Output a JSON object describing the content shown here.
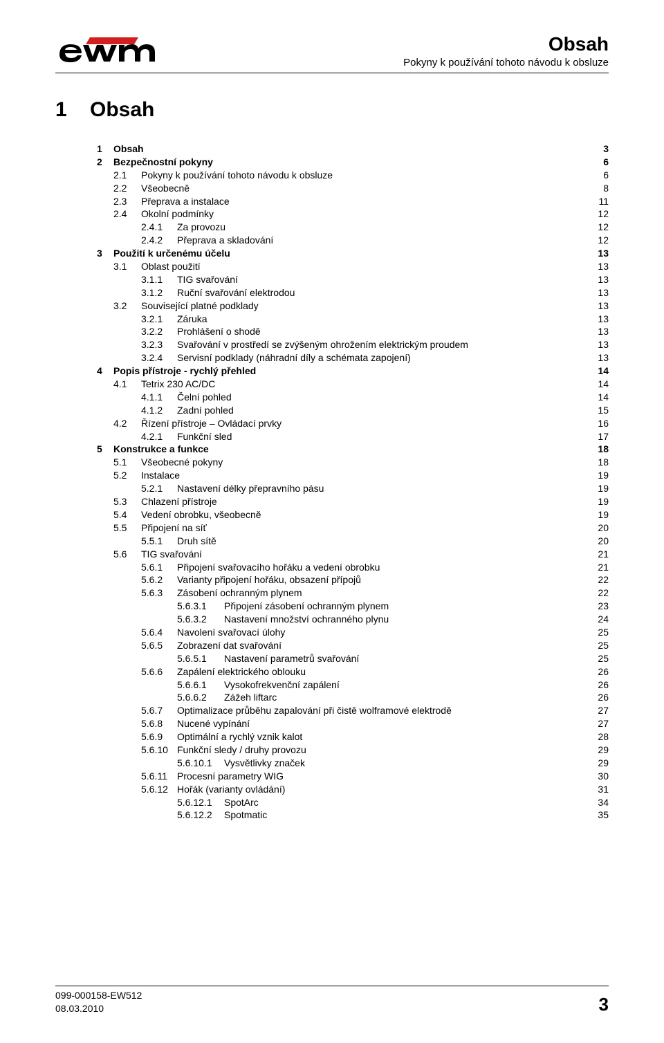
{
  "header": {
    "title": "Obsah",
    "subtitle": "Pokyny k používání tohoto návodu k obsluze"
  },
  "main": {
    "number": "1",
    "title": "Obsah"
  },
  "toc": [
    {
      "level": 0,
      "num": "1",
      "title": "Obsah",
      "page": "3",
      "bold": true
    },
    {
      "level": 0,
      "num": "2",
      "title": "Bezpečnostní pokyny",
      "page": "6",
      "bold": true
    },
    {
      "level": 1,
      "num": "2.1",
      "title": "Pokyny k používání tohoto návodu k obsluze",
      "page": "6"
    },
    {
      "level": 1,
      "num": "2.2",
      "title": "Všeobecně",
      "page": "8"
    },
    {
      "level": 1,
      "num": "2.3",
      "title": "Přeprava a instalace",
      "page": "11"
    },
    {
      "level": 1,
      "num": "2.4",
      "title": "Okolní podmínky",
      "page": "12"
    },
    {
      "level": 2,
      "num": "2.4.1",
      "title": "Za provozu",
      "page": "12"
    },
    {
      "level": 2,
      "num": "2.4.2",
      "title": "Přeprava a skladování",
      "page": "12"
    },
    {
      "level": 0,
      "num": "3",
      "title": "Použití k určenému účelu",
      "page": "13",
      "bold": true
    },
    {
      "level": 1,
      "num": "3.1",
      "title": "Oblast použití",
      "page": "13"
    },
    {
      "level": 2,
      "num": "3.1.1",
      "title": "TIG svařování",
      "page": "13"
    },
    {
      "level": 2,
      "num": "3.1.2",
      "title": "Ruční svařování elektrodou",
      "page": "13"
    },
    {
      "level": 1,
      "num": "3.2",
      "title": "Související platné podklady",
      "page": "13"
    },
    {
      "level": 2,
      "num": "3.2.1",
      "title": "Záruka",
      "page": "13"
    },
    {
      "level": 2,
      "num": "3.2.2",
      "title": "Prohlášení o shodě",
      "page": "13"
    },
    {
      "level": 2,
      "num": "3.2.3",
      "title": "Svařování v prostředí se zvýšeným ohrožením elektrickým proudem",
      "page": "13"
    },
    {
      "level": 2,
      "num": "3.2.4",
      "title": "Servisní podklady (náhradní díly a schémata zapojení)",
      "page": "13"
    },
    {
      "level": 0,
      "num": "4",
      "title": "Popis přístroje - rychlý přehled",
      "page": "14",
      "bold": true
    },
    {
      "level": 1,
      "num": "4.1",
      "title": "Tetrix 230 AC/DC",
      "page": "14"
    },
    {
      "level": 2,
      "num": "4.1.1",
      "title": "Čelní pohled",
      "page": "14"
    },
    {
      "level": 2,
      "num": "4.1.2",
      "title": "Zadní pohled",
      "page": "15"
    },
    {
      "level": 1,
      "num": "4.2",
      "title": "Řízení přístroje – Ovládací prvky",
      "page": "16"
    },
    {
      "level": 2,
      "num": "4.2.1",
      "title": "Funkční sled",
      "page": "17"
    },
    {
      "level": 0,
      "num": "5",
      "title": "Konstrukce a funkce",
      "page": "18",
      "bold": true
    },
    {
      "level": 1,
      "num": "5.1",
      "title": "Všeobecné pokyny",
      "page": "18"
    },
    {
      "level": 1,
      "num": "5.2",
      "title": "Instalace",
      "page": "19"
    },
    {
      "level": 2,
      "num": "5.2.1",
      "title": "Nastavení délky přepravního pásu",
      "page": "19"
    },
    {
      "level": 1,
      "num": "5.3",
      "title": "Chlazení přístroje",
      "page": "19"
    },
    {
      "level": 1,
      "num": "5.4",
      "title": "Vedení obrobku, všeobecně",
      "page": "19"
    },
    {
      "level": 1,
      "num": "5.5",
      "title": "Připojení na síť",
      "page": "20"
    },
    {
      "level": 2,
      "num": "5.5.1",
      "title": "Druh sítě",
      "page": "20"
    },
    {
      "level": 1,
      "num": "5.6",
      "title": "TIG svařování",
      "page": "21"
    },
    {
      "level": 2,
      "num": "5.6.1",
      "title": "Připojení svařovacího hořáku a vedení obrobku",
      "page": "21"
    },
    {
      "level": 2,
      "num": "5.6.2",
      "title": "Varianty připojení hořáku, obsazení přípojů",
      "page": "22"
    },
    {
      "level": 2,
      "num": "5.6.3",
      "title": "Zásobení ochranným plynem",
      "page": "22"
    },
    {
      "level": 3,
      "num": "5.6.3.1",
      "title": "Připojení zásobení ochranným plynem",
      "page": "23"
    },
    {
      "level": 3,
      "num": "5.6.3.2",
      "title": "Nastavení množství ochranného plynu",
      "page": "24"
    },
    {
      "level": 2,
      "num": "5.6.4",
      "title": "Navolení svařovací úlohy",
      "page": "25"
    },
    {
      "level": 2,
      "num": "5.6.5",
      "title": "Zobrazení dat svařování",
      "page": "25"
    },
    {
      "level": 3,
      "num": "5.6.5.1",
      "title": "Nastavení parametrů svařování",
      "page": "25"
    },
    {
      "level": 2,
      "num": "5.6.6",
      "title": "Zapálení elektrického oblouku",
      "page": "26"
    },
    {
      "level": 3,
      "num": "5.6.6.1",
      "title": "Vysokofrekvenční zapálení",
      "page": "26"
    },
    {
      "level": 3,
      "num": "5.6.6.2",
      "title": "Zážeh liftarc",
      "page": "26"
    },
    {
      "level": 2,
      "num": "5.6.7",
      "title": "Optimalizace průběhu zapalování při čistě wolframové elektrodě",
      "page": "27"
    },
    {
      "level": 2,
      "num": "5.6.8",
      "title": "Nucené vypínání",
      "page": "27"
    },
    {
      "level": 2,
      "num": "5.6.9",
      "title": "Optimální a rychlý vznik kalot",
      "page": "28"
    },
    {
      "level": 2,
      "num": "5.6.10",
      "title": "Funkční sledy / druhy provozu",
      "page": "29"
    },
    {
      "level": 3,
      "num": "5.6.10.1",
      "title": "Vysvětlivky značek",
      "page": "29"
    },
    {
      "level": 2,
      "num": "5.6.11",
      "title": "Procesní parametry WIG",
      "page": "30"
    },
    {
      "level": 2,
      "num": "5.6.12",
      "title": "Hořák (varianty ovládání)",
      "page": "31"
    },
    {
      "level": 3,
      "num": "5.6.12.1",
      "title": "SpotArc",
      "page": "34"
    },
    {
      "level": 3,
      "num": "5.6.12.2",
      "title": "Spotmatic",
      "page": "35"
    }
  ],
  "footer": {
    "code": "099-000158-EW512",
    "date": "08.03.2010",
    "page": "3"
  },
  "logo": {
    "stroke": "#000000",
    "accent": "#d21f1f"
  }
}
